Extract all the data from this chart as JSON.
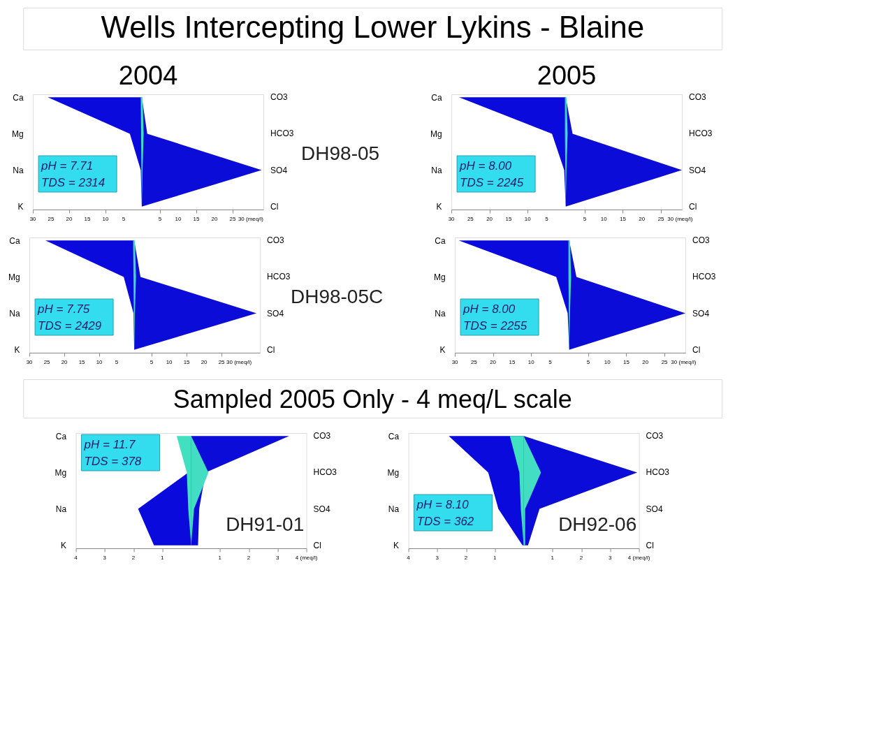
{
  "chart_data": [
    {
      "type": "other",
      "title": "Wells Intercepting Lower Lykins - Blaine"
    },
    {
      "type": "area",
      "orientation": "horizontal",
      "title": "2004",
      "categories": [
        "Ca",
        "Mg",
        "Na",
        "K"
      ],
      "y2_categories": [
        "CO3",
        "HCO3",
        "SO4",
        "Cl"
      ],
      "xlim": [
        -30,
        33.5
      ],
      "xticks": [
        {
          "value": -30,
          "label": "30"
        },
        {
          "value": -25,
          "label": "25"
        },
        {
          "value": -20,
          "label": "20"
        },
        {
          "value": -15,
          "label": "15"
        },
        {
          "value": -10,
          "label": "10"
        },
        {
          "value": -5,
          "label": "5"
        },
        5,
        10,
        15,
        20,
        25,
        {
          "value": 30,
          "label": "30 (meq/l)"
        }
      ],
      "annotations": [
        "pH = 7.71",
        "TDS = 2314",
        "DH98-05"
      ],
      "series": [
        {
          "color": "#0a0adc",
          "values": [
            -25.9,
            -3.3,
            -0.3,
            0
          ]
        },
        {
          "color": "#0c0cd9",
          "values": [
            0,
            1.5,
            33,
            0
          ]
        },
        {
          "color": "#40e0c0",
          "values": [
            -0.3,
            -0.2,
            -0.1,
            0
          ]
        },
        {
          "color": "#43ddc3",
          "values": [
            0.2,
            0.5,
            0.2,
            0
          ]
        }
      ]
    },
    {
      "type": "area",
      "orientation": "horizontal",
      "title": "2005",
      "categories": [
        "Ca",
        "Mg",
        "Na",
        "K"
      ],
      "y2_categories": [
        "CO3",
        "HCO3",
        "SO4",
        "Cl"
      ],
      "xlim": [
        -30,
        30.5
      ],
      "xticks": [
        {
          "value": -30,
          "label": "30"
        },
        {
          "value": -25,
          "label": "25"
        },
        {
          "value": -20,
          "label": "20"
        },
        {
          "value": -15,
          "label": "15"
        },
        {
          "value": -10,
          "label": "10"
        },
        {
          "value": -5,
          "label": "5"
        },
        5,
        10,
        15,
        20,
        25,
        {
          "value": 30,
          "label": "30 (meq/l)"
        }
      ],
      "annotations": [
        "pH = 8.00",
        "TDS = 2245"
      ],
      "series": [
        {
          "color": "#0a0adc",
          "values": [
            -28,
            -3.6,
            -0.4,
            0
          ]
        },
        {
          "color": "#0c0cd9",
          "values": [
            0,
            1.8,
            30.5,
            0
          ]
        },
        {
          "color": "#40e0c0",
          "values": [
            -0.2,
            -0.2,
            -0.1,
            0
          ]
        },
        {
          "color": "#43ddc3",
          "values": [
            0.2,
            0.5,
            0.2,
            0
          ]
        }
      ]
    },
    {
      "type": "area",
      "orientation": "horizontal",
      "categories": [
        "Ca",
        "Mg",
        "Na",
        "K"
      ],
      "y2_categories": [
        "CO3",
        "HCO3",
        "SO4",
        "Cl"
      ],
      "xlim": [
        -30,
        36
      ],
      "xticks": [
        {
          "value": -30,
          "label": "30"
        },
        {
          "value": -25,
          "label": "25"
        },
        {
          "value": -20,
          "label": "20"
        },
        {
          "value": -15,
          "label": "15"
        },
        {
          "value": -10,
          "label": "10"
        },
        {
          "value": -5,
          "label": "5"
        },
        5,
        10,
        15,
        20,
        25,
        {
          "value": 30,
          "label": "30 (meq/l)"
        }
      ],
      "annotations": [
        "pH = 7.75",
        "TDS = 2429",
        "DH98-05C"
      ],
      "series": [
        {
          "color": "#0a0adc",
          "values": [
            -25.4,
            -3,
            -0.2,
            0
          ]
        },
        {
          "color": "#0c0cd9",
          "values": [
            0,
            1.8,
            35,
            0
          ]
        },
        {
          "color": "#40e0c0",
          "values": [
            -0.3,
            -0.2,
            -0.1,
            0
          ]
        },
        {
          "color": "#43ddc3",
          "values": [
            0.2,
            0.5,
            0.2,
            0
          ]
        }
      ]
    },
    {
      "type": "area",
      "orientation": "horizontal",
      "categories": [
        "Ca",
        "Mg",
        "Na",
        "K"
      ],
      "y2_categories": [
        "CO3",
        "HCO3",
        "SO4",
        "Cl"
      ],
      "xlim": [
        -30,
        30.5
      ],
      "xticks": [
        {
          "value": -30,
          "label": "30"
        },
        {
          "value": -25,
          "label": "25"
        },
        {
          "value": -20,
          "label": "20"
        },
        {
          "value": -15,
          "label": "15"
        },
        {
          "value": -10,
          "label": "10"
        },
        {
          "value": -5,
          "label": "5"
        },
        5,
        10,
        15,
        20,
        25,
        {
          "value": 30,
          "label": "30 (meq/l)"
        }
      ],
      "annotations": [
        "pH = 8.00",
        "TDS = 2255"
      ],
      "series": [
        {
          "color": "#0a0adc",
          "values": [
            -29,
            -3.4,
            -0.4,
            0
          ]
        },
        {
          "color": "#0c0cd9",
          "values": [
            0,
            1.9,
            30.5,
            0
          ]
        },
        {
          "color": "#40e0c0",
          "values": [
            -0.2,
            -0.2,
            -0.1,
            0
          ]
        },
        {
          "color": "#43ddc3",
          "values": [
            0.2,
            0.5,
            0.2,
            0
          ]
        }
      ]
    },
    {
      "type": "other",
      "title": "Sampled 2005 Only - 4 meq/L scale"
    },
    {
      "type": "area",
      "orientation": "horizontal",
      "categories": [
        "Ca",
        "Mg",
        "Na",
        "K"
      ],
      "y2_categories": [
        "CO3",
        "HCO3",
        "SO4",
        "Cl"
      ],
      "xlim": [
        -4,
        4
      ],
      "xticks": [
        {
          "value": -4,
          "label": "4"
        },
        {
          "value": -3,
          "label": "3"
        },
        {
          "value": -2,
          "label": "2"
        },
        {
          "value": -1,
          "label": "1"
        },
        1,
        2,
        3,
        {
          "value": 4,
          "label": "4 (meq/l)"
        }
      ],
      "annotations": [
        "pH = 11.7",
        "TDS = 378",
        "DH91-01"
      ],
      "series": [
        {
          "color": "#0a0adc",
          "values": [
            0,
            -0.1,
            -1.84,
            -1.29
          ]
        },
        {
          "color": "#0c0cd9",
          "values": [
            3.4,
            0.5,
            0.28,
            0.24
          ]
        },
        {
          "color": "#40e0c0",
          "values": [
            -0.5,
            -0.15,
            -0.1,
            0
          ]
        },
        {
          "color": "#43ddc3",
          "values": [
            0,
            0.6,
            0.1,
            0
          ]
        }
      ]
    },
    {
      "type": "area",
      "orientation": "horizontal",
      "categories": [
        "Ca",
        "Mg",
        "Na",
        "K"
      ],
      "y2_categories": [
        "CO3",
        "HCO3",
        "SO4",
        "Cl"
      ],
      "xlim": [
        -4,
        4
      ],
      "xticks": [
        {
          "value": -4,
          "label": "4"
        },
        {
          "value": -3,
          "label": "3"
        },
        {
          "value": -2,
          "label": "2"
        },
        {
          "value": -1,
          "label": "1"
        },
        1,
        2,
        3,
        {
          "value": 4,
          "label": "4 (meq/l)"
        }
      ],
      "annotations": [
        "pH = 8.10",
        "TDS = 362",
        "DH92-06"
      ],
      "series": [
        {
          "color": "#0a0adc",
          "values": [
            -2.6,
            -1.23,
            -0.88,
            -0.04
          ]
        },
        {
          "color": "#0c0cd9",
          "values": [
            0,
            3.94,
            0.55,
            0.15
          ]
        },
        {
          "color": "#40e0c0",
          "values": [
            -0.48,
            -0.15,
            -0.1,
            0
          ]
        },
        {
          "color": "#43ddc3",
          "values": [
            0,
            0.6,
            0.05,
            0.05
          ]
        }
      ]
    }
  ]
}
